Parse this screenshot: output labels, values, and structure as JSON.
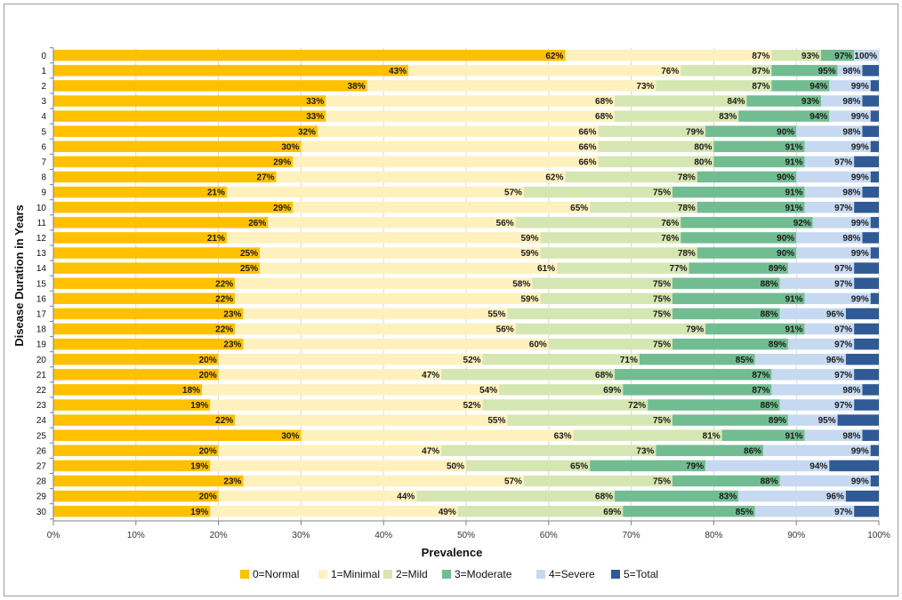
{
  "chart_data": {
    "type": "bar",
    "orientation": "horizontal",
    "stacked": true,
    "title": "",
    "xlabel": "Prevalence",
    "ylabel": "Disease Duration in Years",
    "xlim": [
      0,
      100
    ],
    "x_ticks": [
      "0%",
      "10%",
      "20%",
      "30%",
      "40%",
      "50%",
      "60%",
      "70%",
      "80%",
      "90%",
      "100%"
    ],
    "categories": [
      "0",
      "1",
      "2",
      "3",
      "4",
      "5",
      "6",
      "7",
      "8",
      "9",
      "10",
      "11",
      "12",
      "13",
      "14",
      "15",
      "16",
      "17",
      "18",
      "19",
      "20",
      "21",
      "22",
      "23",
      "24",
      "25",
      "26",
      "27",
      "28",
      "29",
      "30"
    ],
    "legend_position": "bottom",
    "series": [
      {
        "name": "0=Normal",
        "color": "#FFC000",
        "cumulative": [
          62,
          43,
          38,
          33,
          33,
          32,
          30,
          29,
          27,
          21,
          29,
          26,
          21,
          25,
          25,
          22,
          22,
          23,
          22,
          23,
          20,
          20,
          18,
          19,
          22,
          30,
          20,
          19,
          23,
          20,
          19
        ]
      },
      {
        "name": "1=Minimal",
        "color": "#FFF1BE",
        "cumulative": [
          87,
          76,
          73,
          68,
          68,
          66,
          66,
          66,
          62,
          57,
          65,
          56,
          59,
          59,
          61,
          58,
          59,
          55,
          56,
          60,
          52,
          47,
          54,
          52,
          55,
          63,
          47,
          50,
          57,
          44,
          49
        ]
      },
      {
        "name": "2=Mild",
        "color": "#D6E6B2",
        "cumulative": [
          93,
          87,
          87,
          84,
          83,
          79,
          80,
          80,
          78,
          75,
          78,
          76,
          76,
          78,
          77,
          75,
          75,
          75,
          79,
          75,
          71,
          68,
          69,
          72,
          75,
          81,
          73,
          65,
          75,
          68,
          69
        ]
      },
      {
        "name": "3=Moderate",
        "color": "#72BC91",
        "cumulative": [
          97,
          95,
          94,
          93,
          94,
          90,
          91,
          91,
          90,
          91,
          91,
          92,
          90,
          90,
          89,
          88,
          91,
          88,
          91,
          89,
          85,
          87,
          87,
          88,
          89,
          91,
          86,
          79,
          88,
          83,
          85
        ]
      },
      {
        "name": "4=Severe",
        "color": "#C6D9F1",
        "cumulative": [
          100,
          98,
          99,
          98,
          99,
          98,
          99,
          97,
          99,
          98,
          97,
          99,
          98,
          99,
          97,
          97,
          99,
          96,
          97,
          97,
          96,
          97,
          98,
          97,
          95,
          98,
          99,
          94,
          99,
          96,
          97
        ]
      },
      {
        "name": "5=Total",
        "color": "#2F5A95",
        "cumulative": [
          100,
          100,
          100,
          100,
          100,
          100,
          100,
          100,
          100,
          100,
          100,
          100,
          100,
          100,
          100,
          100,
          100,
          100,
          100,
          100,
          100,
          100,
          100,
          100,
          100,
          100,
          100,
          100,
          100,
          100,
          100
        ]
      }
    ],
    "data_labels": [
      [
        "62%",
        "87%",
        "93%",
        "97%",
        "100%"
      ],
      [
        "43%",
        "76%",
        "87%",
        "95%",
        "98%"
      ],
      [
        "38%",
        "73%",
        "87%",
        "94%",
        "99%"
      ],
      [
        "33%",
        "68%",
        "84%",
        "93%",
        "98%"
      ],
      [
        "33%",
        "68%",
        "83%",
        "94%",
        "99%"
      ],
      [
        "32%",
        "66%",
        "79%",
        "90%",
        "98%"
      ],
      [
        "30%",
        "66%",
        "80%",
        "91%",
        "99%"
      ],
      [
        "29%",
        "66%",
        "80%",
        "91%",
        "97%"
      ],
      [
        "27%",
        "62%",
        "78%",
        "90%",
        "99%"
      ],
      [
        "21%",
        "57%",
        "75%",
        "91%",
        "98%"
      ],
      [
        "29%",
        "65%",
        "78%",
        "91%",
        "97%"
      ],
      [
        "26%",
        "56%",
        "76%",
        "92%",
        "99%"
      ],
      [
        "21%",
        "59%",
        "76%",
        "90%",
        "98%"
      ],
      [
        "25%",
        "59%",
        "78%",
        "90%",
        "99%"
      ],
      [
        "25%",
        "61%",
        "77%",
        "89%",
        "97%"
      ],
      [
        "22%",
        "58%",
        "75%",
        "88%",
        "97%"
      ],
      [
        "22%",
        "59%",
        "75%",
        "91%",
        "99%"
      ],
      [
        "23%",
        "55%",
        "75%",
        "88%",
        "96%"
      ],
      [
        "22%",
        "56%",
        "79%",
        "91%",
        "97%"
      ],
      [
        "23%",
        "60%",
        "75%",
        "89%",
        "97%"
      ],
      [
        "20%",
        "52%",
        "71%",
        "85%",
        "96%"
      ],
      [
        "20%",
        "47%",
        "68%",
        "87%",
        "97%"
      ],
      [
        "18%",
        "54%",
        "69%",
        "87%",
        "98%"
      ],
      [
        "19%",
        "52%",
        "72%",
        "88%",
        "97%"
      ],
      [
        "22%",
        "55%",
        "75%",
        "89%",
        "95%"
      ],
      [
        "30%",
        "63%",
        "81%",
        "91%",
        "98%"
      ],
      [
        "20%",
        "47%",
        "73%",
        "86%",
        "99%"
      ],
      [
        "19%",
        "50%",
        "65%",
        "79%",
        "94%"
      ],
      [
        "23%",
        "57%",
        "75%",
        "88%",
        "99%"
      ],
      [
        "20%",
        "44%",
        "68%",
        "83%",
        "96%"
      ],
      [
        "19%",
        "49%",
        "69%",
        "85%",
        "97%"
      ]
    ]
  }
}
